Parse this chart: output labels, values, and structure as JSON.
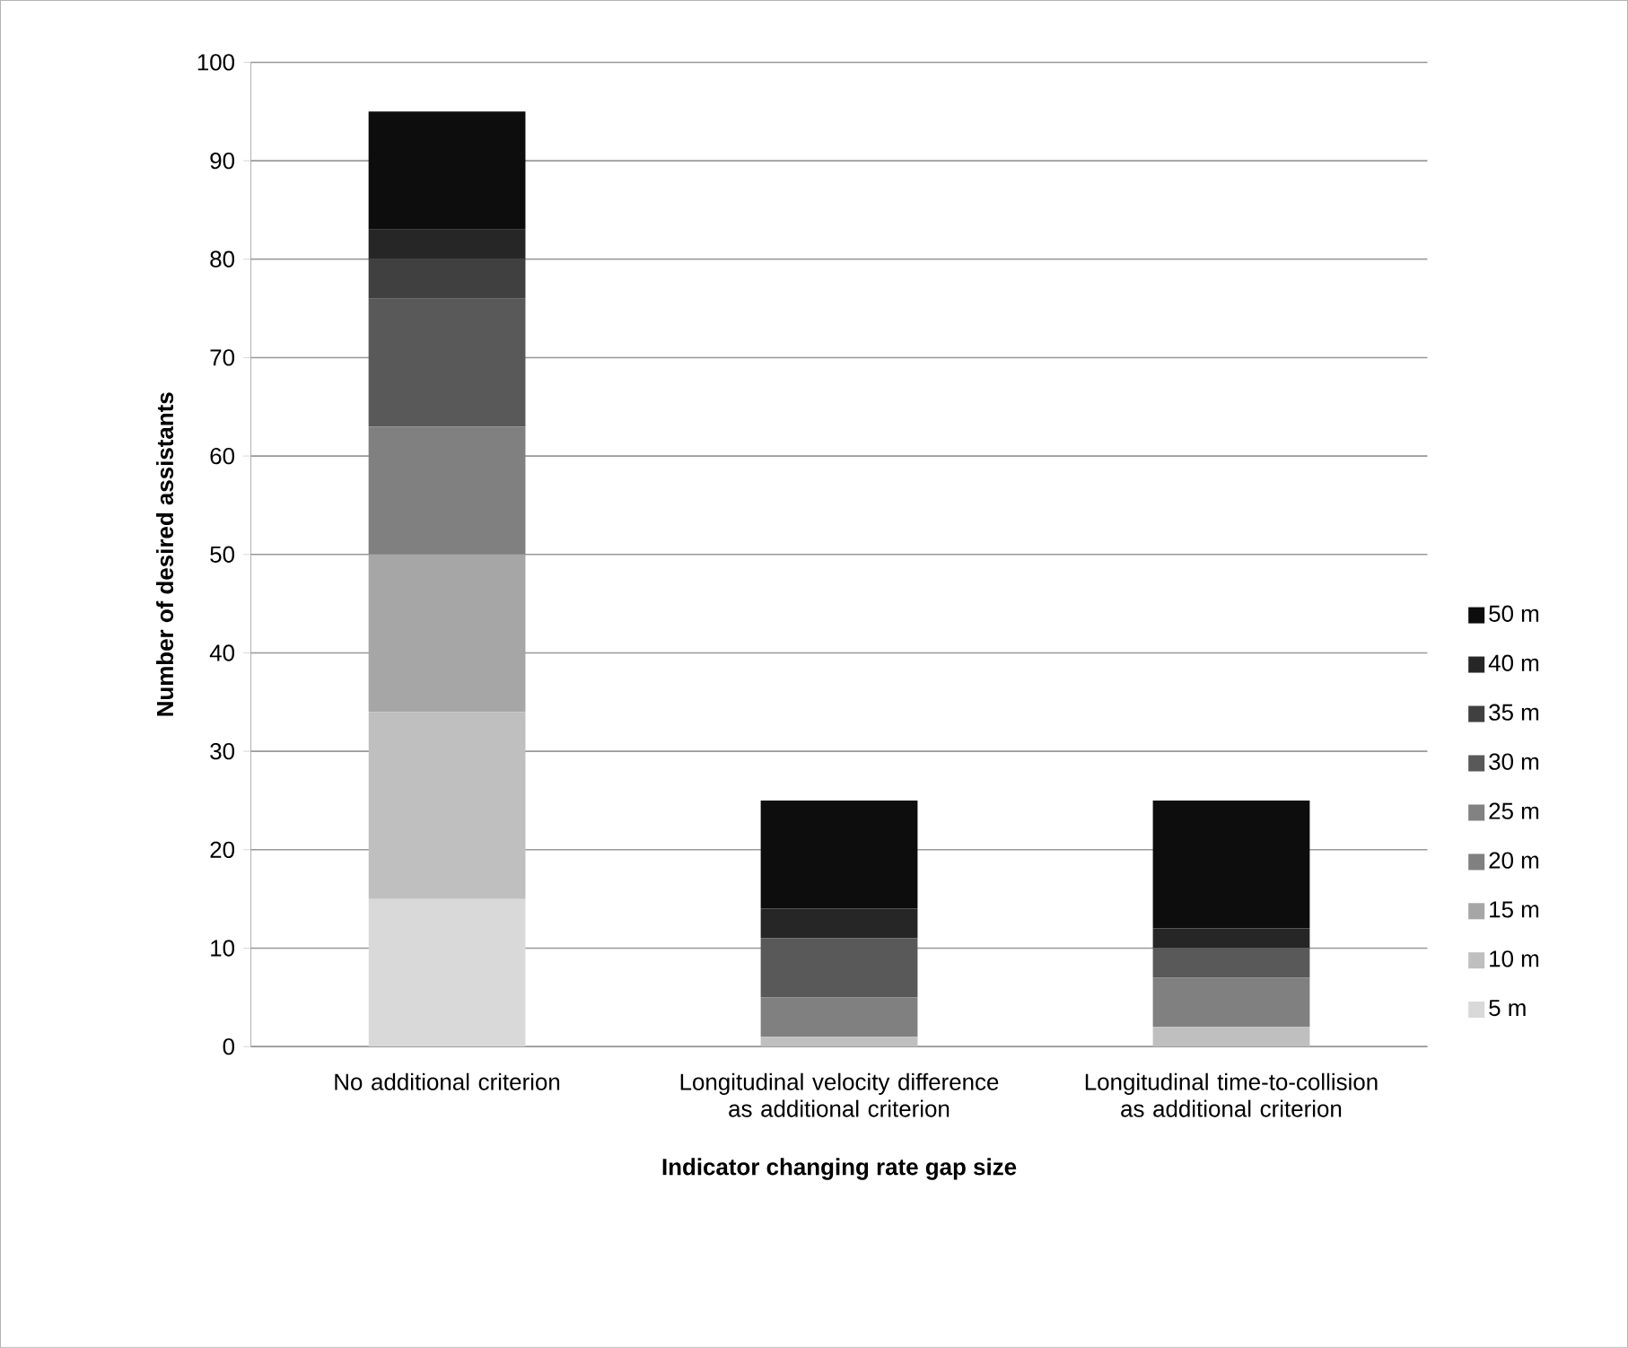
{
  "chart_data": {
    "type": "bar",
    "stacked": true,
    "xlabel": "Indicator changing rate gap size",
    "ylabel": "Number of desired assistants",
    "categories": [
      "No additional criterion",
      "Longitudinal velocity difference as additional criterion",
      "Longitudinal time-to-collision as additional criterion"
    ],
    "series": [
      {
        "name": "5 m",
        "color": "#d9d9d9",
        "values": [
          15,
          0,
          0
        ]
      },
      {
        "name": "10 m",
        "color": "#bfbfbf",
        "values": [
          19,
          1,
          2
        ]
      },
      {
        "name": "15 m",
        "color": "#a6a6a6",
        "values": [
          16,
          0,
          0
        ]
      },
      {
        "name": "20 m",
        "color": "#808080",
        "values": [
          13,
          4,
          5
        ]
      },
      {
        "name": "25 m",
        "color": "#828282",
        "values": [
          0,
          0,
          0
        ]
      },
      {
        "name": "30 m",
        "color": "#595959",
        "values": [
          13,
          6,
          3
        ]
      },
      {
        "name": "35 m",
        "color": "#404040",
        "values": [
          4,
          0,
          0
        ]
      },
      {
        "name": "40 m",
        "color": "#262626",
        "values": [
          3,
          3,
          2
        ]
      },
      {
        "name": "50 m",
        "color": "#0d0d0d",
        "values": [
          12,
          11,
          13
        ]
      }
    ],
    "ylim": [
      0,
      100
    ],
    "yticks": [
      0,
      10,
      20,
      30,
      40,
      50,
      60,
      70,
      80,
      90,
      100
    ],
    "grid": "y",
    "legend": "right"
  }
}
